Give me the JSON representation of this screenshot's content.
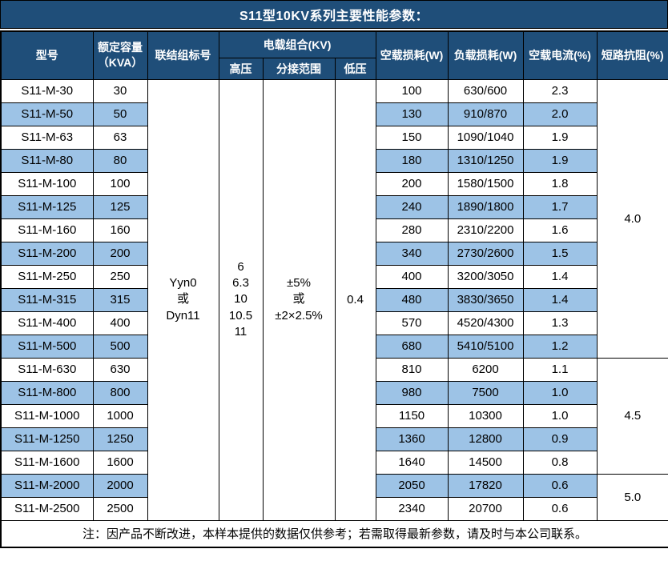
{
  "title": "S11型10KV系列主要性能参数：",
  "colors": {
    "header_bg": "#1F4E79",
    "stripe": "#9DC3E6",
    "border": "#000000",
    "header_text": "#FFFFFF"
  },
  "table": {
    "headers": {
      "model": "型号",
      "capacity_lines": [
        "额定容量",
        "（KVA）"
      ],
      "connection": "联结组标号",
      "voltage_combo": "电载组合(KV)",
      "hv": "高压",
      "tap_range": "分接范围",
      "lv": "低压",
      "no_load_loss": "空载损耗(W)",
      "load_loss": "负载损耗(W)",
      "no_load_current": "空载电流(%)",
      "impedance": "短路抗阻(%)"
    },
    "merged": {
      "connection_lines": [
        "Yyn0",
        "或",
        "Dyn11"
      ],
      "hv_lines": [
        "6",
        "6.3",
        "10",
        "10.5",
        "11"
      ],
      "tap_lines": [
        "±5%",
        "或",
        "±2×2.5%"
      ],
      "lv": "0.4"
    },
    "impedance_groups": [
      {
        "value": "4.0",
        "rows": 12
      },
      {
        "value": "4.5",
        "rows": 5
      },
      {
        "value": "5.0",
        "rows": 2
      }
    ],
    "rows": [
      {
        "model": "S11-M-30",
        "capacity": "30",
        "no_load_loss": "100",
        "load_loss": "630/600",
        "no_load_current": "2.3"
      },
      {
        "model": "S11-M-50",
        "capacity": "50",
        "no_load_loss": "130",
        "load_loss": "910/870",
        "no_load_current": "2.0"
      },
      {
        "model": "S11-M-63",
        "capacity": "63",
        "no_load_loss": "150",
        "load_loss": "1090/1040",
        "no_load_current": "1.9"
      },
      {
        "model": "S11-M-80",
        "capacity": "80",
        "no_load_loss": "180",
        "load_loss": "1310/1250",
        "no_load_current": "1.9"
      },
      {
        "model": "S11-M-100",
        "capacity": "100",
        "no_load_loss": "200",
        "load_loss": "1580/1500",
        "no_load_current": "1.8"
      },
      {
        "model": "S11-M-125",
        "capacity": "125",
        "no_load_loss": "240",
        "load_loss": "1890/1800",
        "no_load_current": "1.7"
      },
      {
        "model": "S11-M-160",
        "capacity": "160",
        "no_load_loss": "280",
        "load_loss": "2310/2200",
        "no_load_current": "1.6"
      },
      {
        "model": "S11-M-200",
        "capacity": "200",
        "no_load_loss": "340",
        "load_loss": "2730/2600",
        "no_load_current": "1.5"
      },
      {
        "model": "S11-M-250",
        "capacity": "250",
        "no_load_loss": "400",
        "load_loss": "3200/3050",
        "no_load_current": "1.4"
      },
      {
        "model": "S11-M-315",
        "capacity": "315",
        "no_load_loss": "480",
        "load_loss": "3830/3650",
        "no_load_current": "1.4"
      },
      {
        "model": "S11-M-400",
        "capacity": "400",
        "no_load_loss": "570",
        "load_loss": "4520/4300",
        "no_load_current": "1.3"
      },
      {
        "model": "S11-M-500",
        "capacity": "500",
        "no_load_loss": "680",
        "load_loss": "5410/5100",
        "no_load_current": "1.2"
      },
      {
        "model": "S11-M-630",
        "capacity": "630",
        "no_load_loss": "810",
        "load_loss": "6200",
        "no_load_current": "1.1"
      },
      {
        "model": "S11-M-800",
        "capacity": "800",
        "no_load_loss": "980",
        "load_loss": "7500",
        "no_load_current": "1.0"
      },
      {
        "model": "S11-M-1000",
        "capacity": "1000",
        "no_load_loss": "1150",
        "load_loss": "10300",
        "no_load_current": "1.0"
      },
      {
        "model": "S11-M-1250",
        "capacity": "1250",
        "no_load_loss": "1360",
        "load_loss": "12800",
        "no_load_current": "0.9"
      },
      {
        "model": "S11-M-1600",
        "capacity": "1600",
        "no_load_loss": "1640",
        "load_loss": "14500",
        "no_load_current": "0.8"
      },
      {
        "model": "S11-M-2000",
        "capacity": "2000",
        "no_load_loss": "2050",
        "load_loss": "17820",
        "no_load_current": "0.6"
      },
      {
        "model": "S11-M-2500",
        "capacity": "2500",
        "no_load_loss": "2340",
        "load_loss": "20700",
        "no_load_current": "0.6"
      }
    ],
    "note": "注：因产品不断改进，本样本提供的数据仅供参考；若需取得最新参数，请及时与本公司联系。"
  }
}
